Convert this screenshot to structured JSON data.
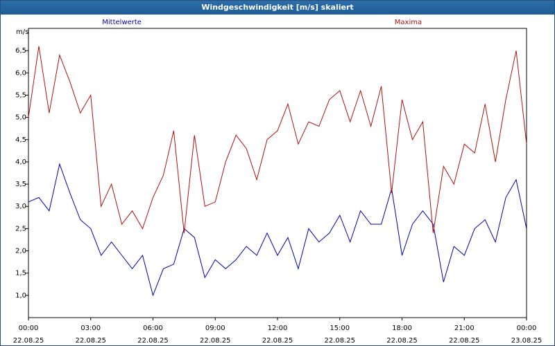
{
  "window": {
    "title": "Windgeschwindigkeit [m/s] skaliert"
  },
  "chart_data": {
    "type": "line",
    "title": "Windgeschwindigkeit [m/s] skaliert",
    "ylabel": "m/s",
    "xlabel": "",
    "ylim": [
      0.5,
      7.0
    ],
    "xlim": [
      0,
      24
    ],
    "grid": true,
    "yticks": [
      1.0,
      1.5,
      2.0,
      2.5,
      3.0,
      3.5,
      4.0,
      4.5,
      5.0,
      5.5,
      6.0,
      6.5
    ],
    "ytick_labels": [
      "1,0",
      "1,5",
      "2,0",
      "2,5",
      "3,0",
      "3,5",
      "4,0",
      "4,5",
      "5,0",
      "5,5",
      "6,0",
      "6,5"
    ],
    "xticks": [
      {
        "pos": 0,
        "time": "00:00",
        "date": "22.08.25"
      },
      {
        "pos": 3,
        "time": "03:00",
        "date": "22.08.25"
      },
      {
        "pos": 6,
        "time": "06:00",
        "date": "22.08.25"
      },
      {
        "pos": 9,
        "time": "09:00",
        "date": "22.08.25"
      },
      {
        "pos": 12,
        "time": "12:00",
        "date": "22.08.25"
      },
      {
        "pos": 15,
        "time": "15:00",
        "date": "22.08.25"
      },
      {
        "pos": 18,
        "time": "18:00",
        "date": "22.08.25"
      },
      {
        "pos": 21,
        "time": "21:00",
        "date": "22.08.25"
      },
      {
        "pos": 24,
        "time": "00:00",
        "date": "23.08.25"
      }
    ],
    "series": [
      {
        "name": "Mittelwerte",
        "color": "#0000b0",
        "x": [
          0,
          0.5,
          1,
          1.5,
          2,
          2.5,
          3,
          3.5,
          4,
          4.5,
          5,
          5.5,
          6,
          6.5,
          7,
          7.5,
          8,
          8.5,
          9,
          9.5,
          10,
          10.5,
          11,
          11.5,
          12,
          12.5,
          13,
          13.5,
          14,
          14.5,
          15,
          15.5,
          16,
          16.5,
          17,
          17.5,
          18,
          18.5,
          19,
          19.5,
          20,
          20.5,
          21,
          21.5,
          22,
          22.5,
          23,
          23.5,
          24
        ],
        "values": [
          3.1,
          3.2,
          2.9,
          3.95,
          3.3,
          2.7,
          2.5,
          1.9,
          2.2,
          1.9,
          1.6,
          1.9,
          1.0,
          1.6,
          1.7,
          2.5,
          2.3,
          1.4,
          1.8,
          1.6,
          1.8,
          2.1,
          1.9,
          2.4,
          1.9,
          2.3,
          1.6,
          2.5,
          2.2,
          2.4,
          2.8,
          2.2,
          2.9,
          2.6,
          2.6,
          3.4,
          1.9,
          2.6,
          2.9,
          2.6,
          1.3,
          2.1,
          1.9,
          2.5,
          2.7,
          2.2,
          3.2,
          3.6,
          2.5
        ]
      },
      {
        "name": "Maxima",
        "color": "#b01010",
        "x": [
          0,
          0.5,
          1,
          1.5,
          2,
          2.5,
          3,
          3.5,
          4,
          4.5,
          5,
          5.5,
          6,
          6.5,
          7,
          7.5,
          8,
          8.5,
          9,
          9.5,
          10,
          10.5,
          11,
          11.5,
          12,
          12.5,
          13,
          13.5,
          14,
          14.5,
          15,
          15.5,
          16,
          16.5,
          17,
          17.5,
          18,
          18.5,
          19,
          19.5,
          20,
          20.5,
          21,
          21.5,
          22,
          22.5,
          23,
          23.5,
          24
        ],
        "values": [
          5.0,
          6.6,
          5.1,
          6.4,
          5.8,
          5.1,
          5.5,
          3.0,
          3.5,
          2.6,
          2.9,
          2.5,
          3.2,
          3.7,
          4.7,
          2.4,
          4.6,
          3.0,
          3.1,
          4.0,
          4.6,
          4.3,
          3.6,
          4.5,
          4.7,
          5.3,
          4.4,
          4.9,
          4.8,
          5.4,
          5.6,
          4.9,
          5.6,
          4.8,
          5.7,
          3.3,
          5.4,
          4.5,
          4.9,
          2.4,
          3.9,
          3.5,
          4.4,
          4.2,
          5.3,
          4.0,
          5.4,
          6.5,
          4.4
        ]
      }
    ]
  }
}
